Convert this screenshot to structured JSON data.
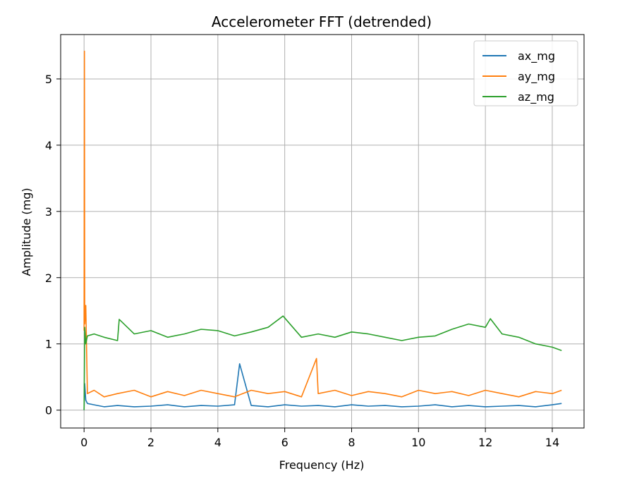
{
  "chart_data": {
    "type": "line",
    "title": "Accelerometer FFT (detrended)",
    "xlabel": "Frequency (Hz)",
    "ylabel": "Amplitude (mg)",
    "xlim": [
      -0.7,
      14.95
    ],
    "ylim": [
      -0.27,
      5.67
    ],
    "x_ticks": [
      0,
      2,
      4,
      6,
      8,
      10,
      12,
      14
    ],
    "y_ticks": [
      0,
      1,
      2,
      3,
      4,
      5
    ],
    "x_tick_labels": [
      "0",
      "2",
      "4",
      "6",
      "8",
      "10",
      "12",
      "14"
    ],
    "y_tick_labels": [
      "0",
      "1",
      "2",
      "3",
      "4",
      "5"
    ],
    "grid": true,
    "legend_position": "top-right",
    "series": [
      {
        "name": "ax_mg",
        "color": "#1f77b4",
        "x": [
          0.0,
          0.02,
          0.05,
          0.1,
          0.3,
          0.6,
          1.0,
          1.5,
          2.0,
          2.5,
          3.0,
          3.5,
          4.0,
          4.5,
          4.65,
          5.0,
          5.5,
          6.0,
          6.5,
          7.0,
          7.5,
          8.0,
          8.5,
          9.0,
          9.5,
          10.0,
          10.5,
          11.0,
          11.5,
          12.0,
          12.5,
          13.0,
          13.5,
          14.0,
          14.28
        ],
        "y": [
          0.0,
          0.4,
          0.15,
          0.1,
          0.08,
          0.05,
          0.07,
          0.05,
          0.06,
          0.08,
          0.05,
          0.07,
          0.06,
          0.08,
          0.7,
          0.07,
          0.05,
          0.08,
          0.06,
          0.07,
          0.05,
          0.08,
          0.06,
          0.07,
          0.05,
          0.06,
          0.08,
          0.05,
          0.07,
          0.05,
          0.06,
          0.07,
          0.05,
          0.08,
          0.1
        ]
      },
      {
        "name": "ay_mg",
        "color": "#ff7f0e",
        "x": [
          0.0,
          0.01,
          0.02,
          0.05,
          0.1,
          0.3,
          0.6,
          1.0,
          1.5,
          2.0,
          2.5,
          3.0,
          3.5,
          4.0,
          4.5,
          5.0,
          5.5,
          6.0,
          6.5,
          6.95,
          7.0,
          7.5,
          8.0,
          8.5,
          9.0,
          9.5,
          10.0,
          10.5,
          11.0,
          11.5,
          12.0,
          12.5,
          13.0,
          13.5,
          14.0,
          14.28
        ],
        "y": [
          1.2,
          5.42,
          1.3,
          1.58,
          0.25,
          0.3,
          0.2,
          0.25,
          0.3,
          0.2,
          0.28,
          0.22,
          0.3,
          0.25,
          0.2,
          0.3,
          0.25,
          0.28,
          0.2,
          0.78,
          0.25,
          0.3,
          0.22,
          0.28,
          0.25,
          0.2,
          0.3,
          0.25,
          0.28,
          0.22,
          0.3,
          0.25,
          0.2,
          0.28,
          0.25,
          0.3
        ]
      },
      {
        "name": "az_mg",
        "color": "#2ca02c",
        "x": [
          0.0,
          0.02,
          0.05,
          0.1,
          0.3,
          0.6,
          1.0,
          1.05,
          1.5,
          2.0,
          2.5,
          3.0,
          3.5,
          4.0,
          4.5,
          5.0,
          5.5,
          5.95,
          6.5,
          7.0,
          7.5,
          8.0,
          8.5,
          9.0,
          9.5,
          10.0,
          10.5,
          11.0,
          11.5,
          12.0,
          12.15,
          12.5,
          13.0,
          13.5,
          14.0,
          14.28
        ],
        "y": [
          0.0,
          1.25,
          1.0,
          1.12,
          1.15,
          1.1,
          1.05,
          1.37,
          1.15,
          1.2,
          1.1,
          1.15,
          1.22,
          1.2,
          1.12,
          1.18,
          1.25,
          1.42,
          1.1,
          1.15,
          1.1,
          1.18,
          1.15,
          1.1,
          1.05,
          1.1,
          1.12,
          1.22,
          1.3,
          1.25,
          1.38,
          1.15,
          1.1,
          1.0,
          0.95,
          0.9
        ]
      }
    ]
  }
}
